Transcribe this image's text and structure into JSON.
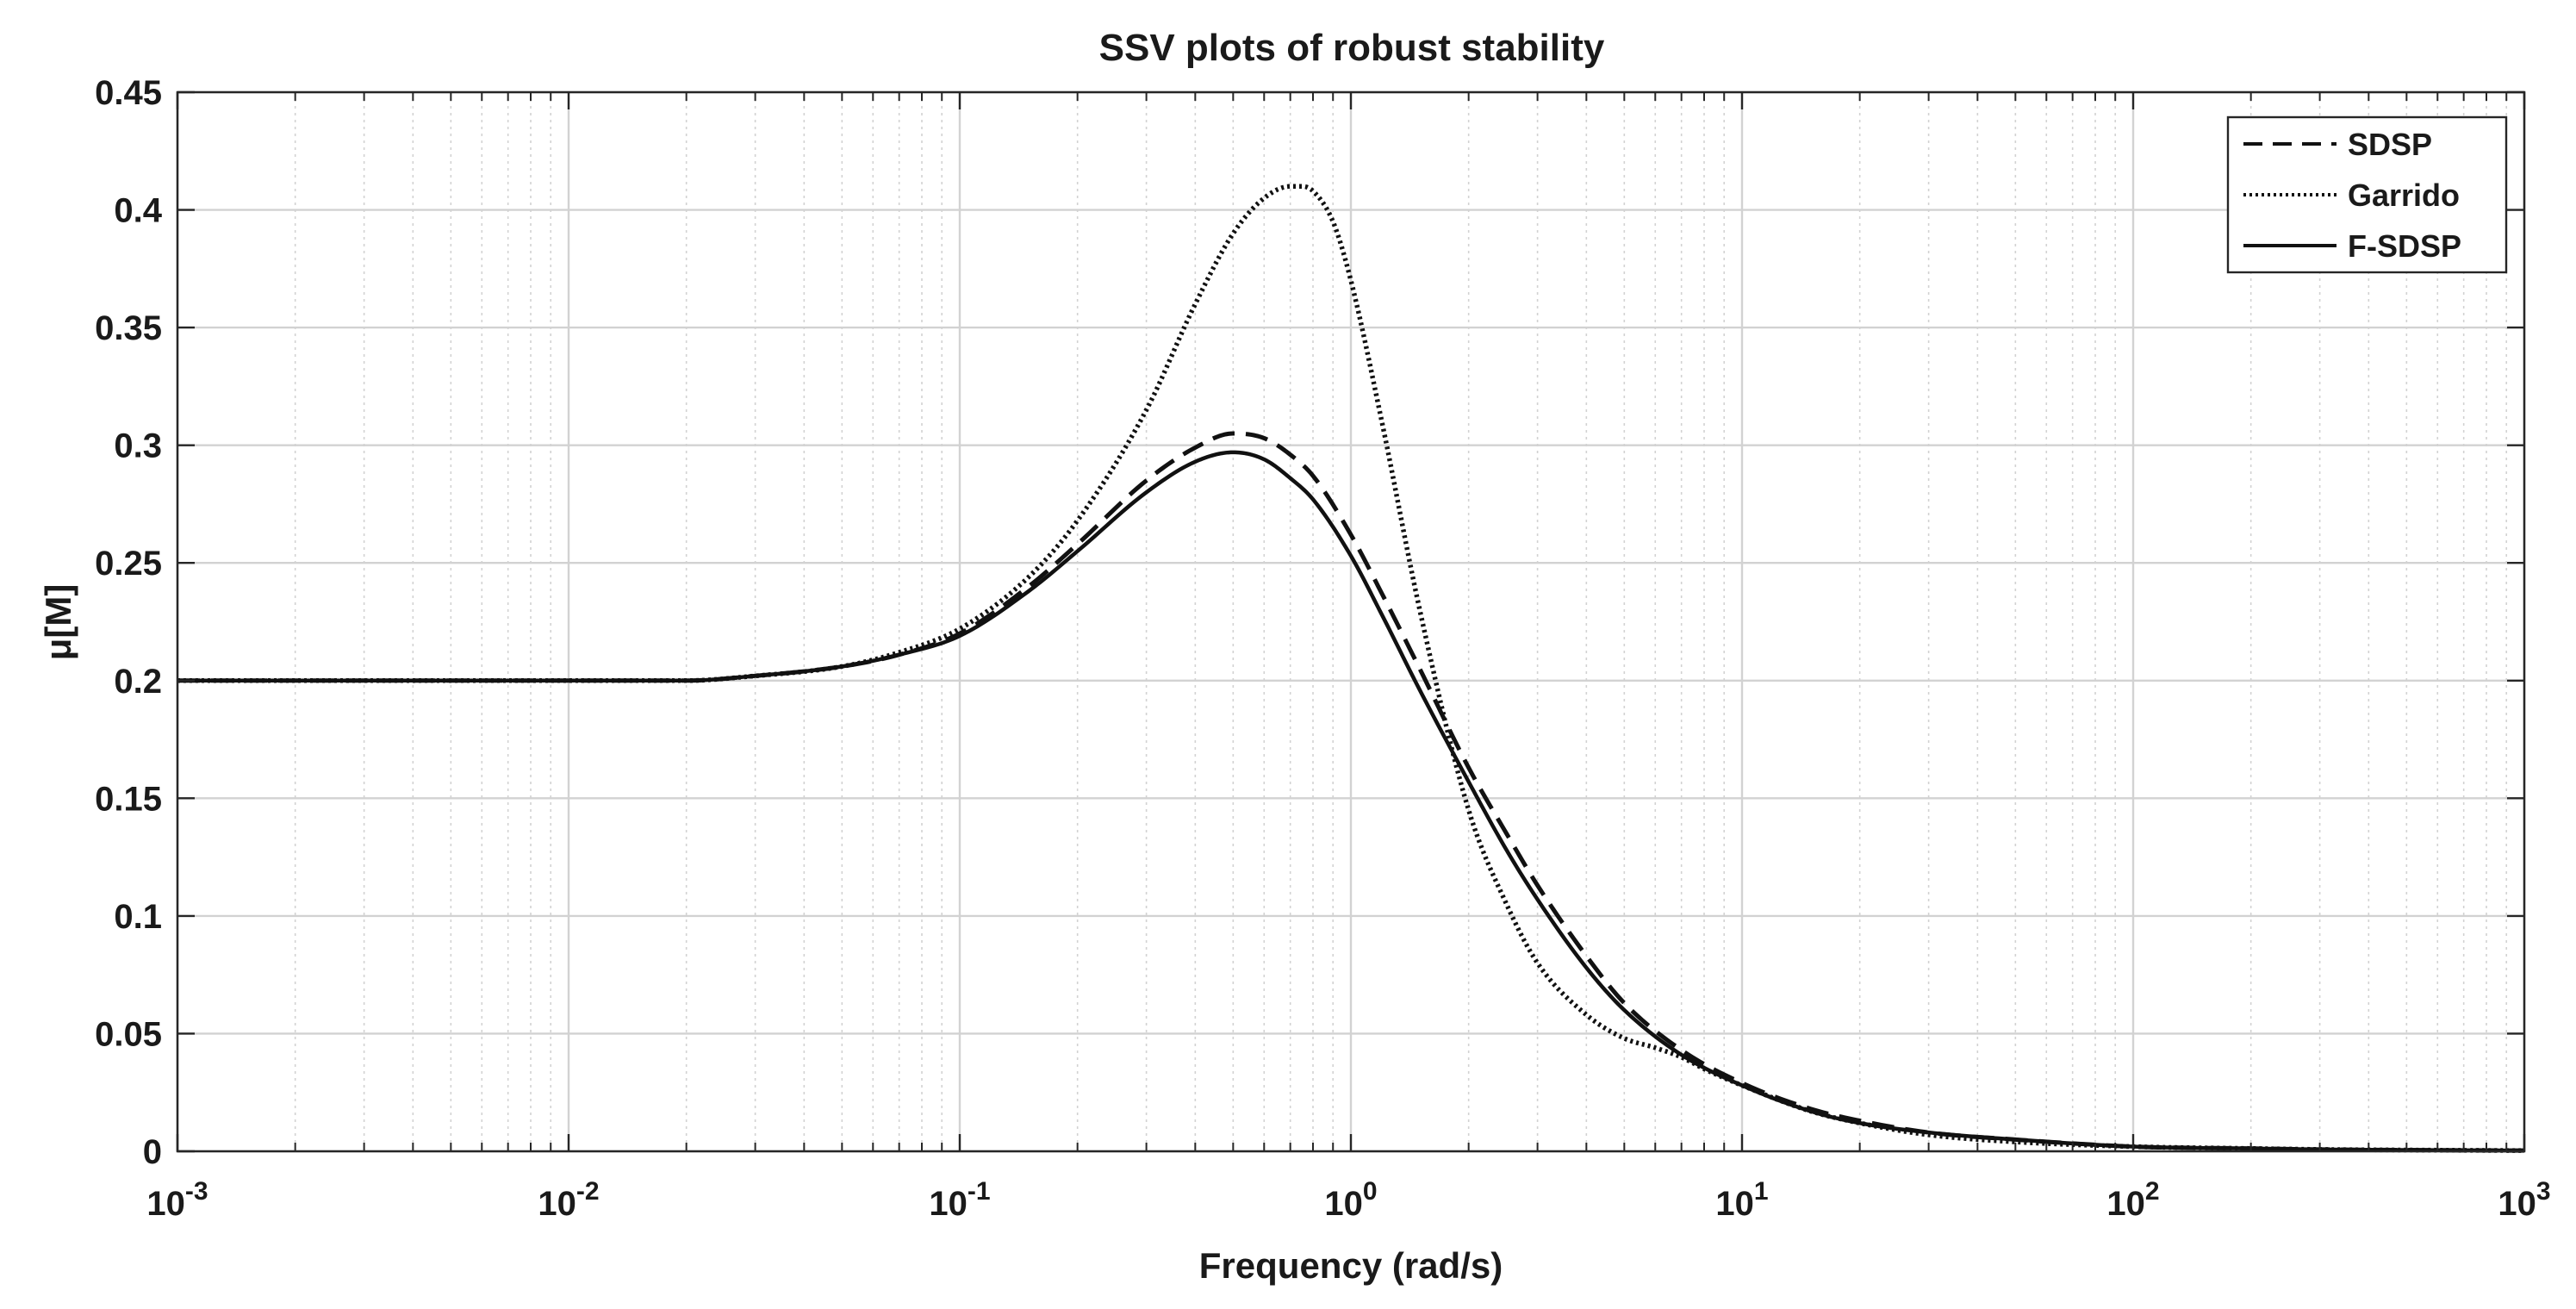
{
  "chart_data": {
    "type": "line",
    "title": "SSV plots of robust stability",
    "xlabel": "Frequency  (rad/s)",
    "ylabel": "μ[M]",
    "xscale": "log",
    "xlim": [
      0.001,
      1000
    ],
    "ylim": [
      0,
      0.45
    ],
    "grid": true,
    "minor_grid": true,
    "legend_position": "top-right",
    "xticks": [
      {
        "value": 0.001,
        "base": "10",
        "exp": "-3"
      },
      {
        "value": 0.01,
        "base": "10",
        "exp": "-2"
      },
      {
        "value": 0.1,
        "base": "10",
        "exp": "-1"
      },
      {
        "value": 1,
        "base": "10",
        "exp": "0"
      },
      {
        "value": 10,
        "base": "10",
        "exp": "1"
      },
      {
        "value": 100,
        "base": "10",
        "exp": "2"
      },
      {
        "value": 1000,
        "base": "10",
        "exp": "3"
      }
    ],
    "yticks": [
      {
        "value": 0,
        "label": "0"
      },
      {
        "value": 0.05,
        "label": "0.05"
      },
      {
        "value": 0.1,
        "label": "0.1"
      },
      {
        "value": 0.15,
        "label": "0.15"
      },
      {
        "value": 0.2,
        "label": "0.2"
      },
      {
        "value": 0.25,
        "label": "0.25"
      },
      {
        "value": 0.3,
        "label": "0.3"
      },
      {
        "value": 0.35,
        "label": "0.35"
      },
      {
        "value": 0.4,
        "label": "0.4"
      },
      {
        "value": 0.45,
        "label": "0.45"
      }
    ],
    "series": [
      {
        "name": "SDSP",
        "style": "dashed",
        "x": [
          0.001,
          0.01,
          0.02,
          0.03,
          0.05,
          0.07,
          0.1,
          0.15,
          0.2,
          0.3,
          0.4,
          0.5,
          0.6,
          0.7,
          0.8,
          1.0,
          1.2,
          1.5,
          2.0,
          2.5,
          3.0,
          4.0,
          5.0,
          7.0,
          10,
          15,
          20,
          30,
          50,
          100,
          200,
          300,
          1000
        ],
        "values": [
          0.2,
          0.2,
          0.2,
          0.202,
          0.206,
          0.211,
          0.22,
          0.24,
          0.258,
          0.285,
          0.299,
          0.305,
          0.303,
          0.296,
          0.287,
          0.262,
          0.237,
          0.205,
          0.163,
          0.135,
          0.113,
          0.083,
          0.063,
          0.043,
          0.029,
          0.018,
          0.013,
          0.008,
          0.005,
          0.002,
          0.0012,
          0.0008,
          0.0003
        ]
      },
      {
        "name": "Garrido",
        "style": "dotted",
        "x": [
          0.001,
          0.01,
          0.02,
          0.03,
          0.05,
          0.07,
          0.1,
          0.15,
          0.2,
          0.3,
          0.4,
          0.5,
          0.6,
          0.7,
          0.75,
          0.8,
          0.9,
          1.0,
          1.2,
          1.5,
          2.0,
          2.5,
          3.0,
          4.0,
          5.0,
          6.0,
          7.0,
          8.0,
          10,
          15,
          20,
          30,
          50,
          100,
          200,
          300,
          1000
        ],
        "values": [
          0.2,
          0.2,
          0.2,
          0.202,
          0.206,
          0.212,
          0.222,
          0.244,
          0.268,
          0.315,
          0.36,
          0.39,
          0.405,
          0.41,
          0.41,
          0.408,
          0.395,
          0.37,
          0.31,
          0.23,
          0.145,
          0.105,
          0.08,
          0.058,
          0.048,
          0.044,
          0.04,
          0.035,
          0.028,
          0.017,
          0.012,
          0.007,
          0.004,
          0.002,
          0.0012,
          0.0008,
          0.0003
        ]
      },
      {
        "name": "F-SDSP",
        "style": "solid",
        "x": [
          0.001,
          0.01,
          0.02,
          0.03,
          0.05,
          0.07,
          0.1,
          0.15,
          0.2,
          0.3,
          0.4,
          0.5,
          0.6,
          0.7,
          0.8,
          1.0,
          1.2,
          1.5,
          2.0,
          2.5,
          3.0,
          4.0,
          5.0,
          7.0,
          10,
          15,
          20,
          30,
          50,
          100,
          200,
          300,
          1000
        ],
        "values": [
          0.2,
          0.2,
          0.2,
          0.202,
          0.206,
          0.211,
          0.219,
          0.238,
          0.255,
          0.28,
          0.293,
          0.297,
          0.294,
          0.286,
          0.277,
          0.253,
          0.228,
          0.196,
          0.157,
          0.128,
          0.107,
          0.078,
          0.06,
          0.041,
          0.028,
          0.017,
          0.012,
          0.008,
          0.005,
          0.002,
          0.0012,
          0.0008,
          0.0003
        ]
      }
    ]
  }
}
